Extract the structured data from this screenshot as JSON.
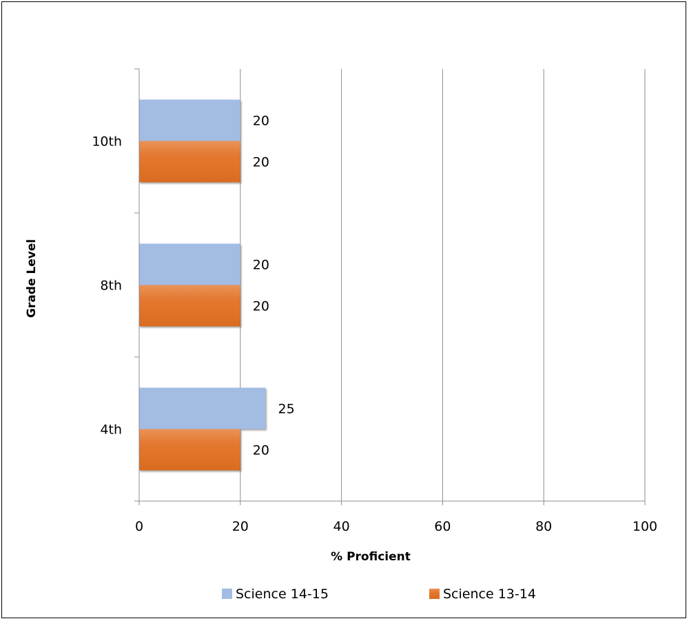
{
  "chart_data": {
    "type": "bar",
    "orientation": "horizontal",
    "categories": [
      "10th",
      "8th",
      "4th"
    ],
    "series": [
      {
        "name": "Science 14-15",
        "values": [
          20,
          20,
          25
        ],
        "color": "#a2bce3"
      },
      {
        "name": "Science 13-14",
        "values": [
          20,
          20,
          20
        ],
        "color": "#e4772e"
      }
    ],
    "xlabel": "% Proficient",
    "ylabel": "Grade Level",
    "xlim": [
      0,
      100
    ],
    "xticks": [
      0,
      20,
      40,
      60,
      80,
      100
    ],
    "grid": true,
    "legend_position": "bottom"
  }
}
